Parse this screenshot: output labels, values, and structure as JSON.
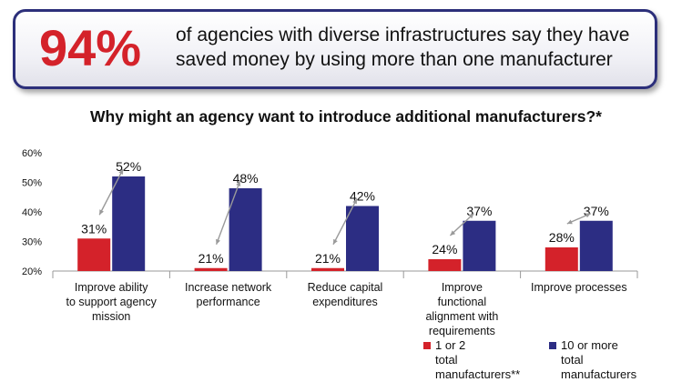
{
  "callout": {
    "percent": "94%",
    "text": "of agencies with diverse infrastructures say they have saved money by using more than one manufacturer"
  },
  "colors": {
    "series1": "#d4222a",
    "series2": "#2c2d83",
    "accent": "#d4222a",
    "border": "#2c2f7a"
  },
  "chart_data": {
    "type": "bar",
    "title": "Why might an agency want to introduce additional manufacturers?*",
    "categories": [
      "Improve ability to support agency mission",
      "Increase network performance",
      "Reduce capital expenditures",
      "Improve functional alignment with requirements",
      "Improve processes"
    ],
    "series": [
      {
        "name": "1 or 2 total manufacturers**",
        "values": [
          31,
          21,
          21,
          24,
          28
        ],
        "color": "#d4222a"
      },
      {
        "name": "10 or more total manufacturers",
        "values": [
          52,
          48,
          42,
          37,
          37
        ],
        "color": "#2c2d83"
      }
    ],
    "yticks": [
      "20%",
      "30%",
      "40%",
      "50%",
      "60%"
    ],
    "ylim": [
      20,
      60
    ],
    "grid": false,
    "legend": "bottom-right",
    "value_suffix": "%"
  }
}
